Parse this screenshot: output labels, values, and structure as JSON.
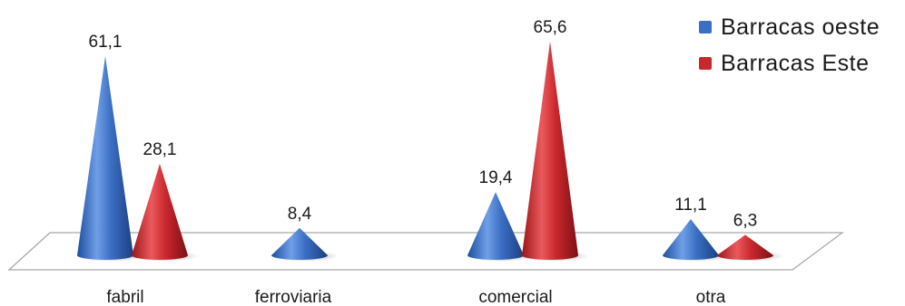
{
  "chart_data": {
    "type": "bar",
    "title": "",
    "xlabel": "",
    "ylabel": "",
    "ylim": [
      0,
      70
    ],
    "categories": [
      "fabril",
      "ferroviaria",
      "comercial",
      "otra"
    ],
    "series": [
      {
        "name": "Barracas oeste",
        "color": "#3b6fc4",
        "values": [
          61.1,
          8.4,
          19.4,
          11.1
        ],
        "labels": [
          "61,1",
          "8,4",
          "19,4",
          "11,1"
        ]
      },
      {
        "name": "Barracas Este",
        "color": "#c9282d",
        "values": [
          28.1,
          null,
          65.6,
          6.3
        ],
        "labels": [
          "28,1",
          "",
          "65,6",
          "6,3"
        ]
      }
    ],
    "legend_position": "top-right",
    "grid": false,
    "mark_shape": "cone"
  }
}
